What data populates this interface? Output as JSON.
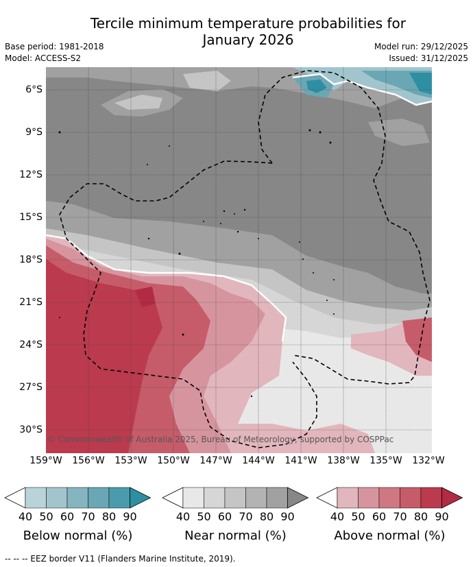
{
  "title_line1": "Tercile minimum temperature probabilities for",
  "title_line2": "January 2026",
  "base_period": "Base period: 1981-2018",
  "model": "Model: ACCESS-S2",
  "model_run": "Model run: 29/12/2025",
  "issued": "Issued: 31/12/2025",
  "copyright": "© Commonwealth of Australia 2025, Bureau of Meteorology, supported by COSPPac",
  "lat_labels": [
    "6°S",
    "9°S",
    "12°S",
    "15°S",
    "18°S",
    "21°S",
    "24°S",
    "27°S",
    "30°S"
  ],
  "lon_labels": [
    "159°W",
    "156°W",
    "153°W",
    "150°W",
    "147°W",
    "144°W",
    "141°W",
    "138°W",
    "135°W",
    "132°W"
  ],
  "legends": [
    {
      "title": "Below normal (%)",
      "ticks": [
        "40",
        "50",
        "60",
        "70",
        "80",
        "90"
      ],
      "colors": [
        "#ffffff",
        "#bad3da",
        "#a2c5cd",
        "#85b5c1",
        "#6aa7b5",
        "#4a9cac",
        "#2e8fa2"
      ]
    },
    {
      "title": "Near normal (%)",
      "ticks": [
        "40",
        "50",
        "60",
        "70",
        "80",
        "90"
      ],
      "colors": [
        "#ffffff",
        "#e8e8e8",
        "#d6d6d6",
        "#c5c5c5",
        "#b3b3b3",
        "#a1a1a1",
        "#878787"
      ]
    },
    {
      "title": "Above normal (%)",
      "ticks": [
        "40",
        "50",
        "60",
        "70",
        "80",
        "90"
      ],
      "colors": [
        "#ffffff",
        "#e2b6bd",
        "#d6959e",
        "#cf7882",
        "#c65c69",
        "#bb3a4e",
        "#b22a44"
      ]
    }
  ],
  "footer": "-- -- -- EEZ border V11 (Flanders Marine Institute, 2019).",
  "colors": {
    "near_dark": "#878787",
    "near_mid": "#a1a1a1",
    "near_light": "#c5c5c5",
    "near_lighter": "#d6d6d6",
    "near_lightest": "#e8e8e8",
    "above_dark": "#bb3a4e",
    "above_mid": "#c65c69",
    "above_light": "#d6959e",
    "above_lighter": "#e2b6bd",
    "below_dark": "#2e8fa2",
    "below_mid": "#6aa7b5",
    "below_light": "#a2c5cd"
  }
}
